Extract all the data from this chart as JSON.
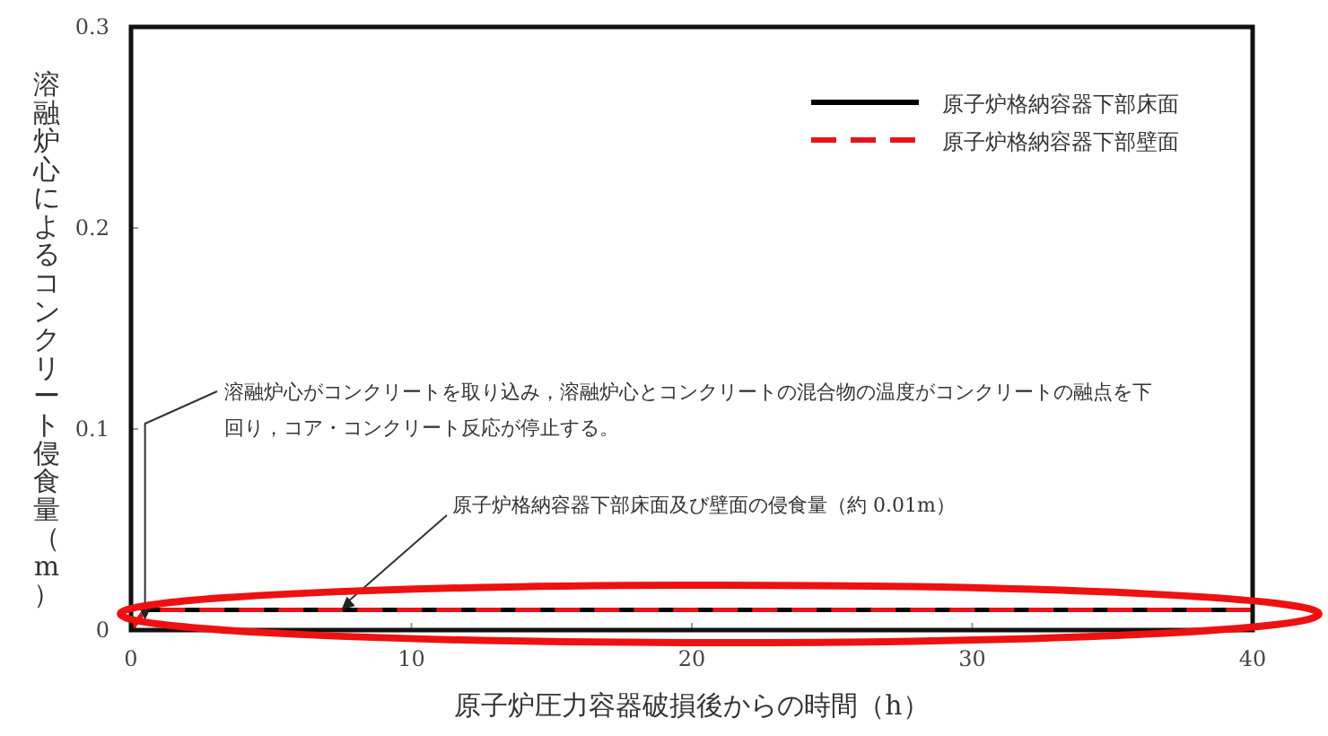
{
  "chart_data": {
    "type": "line",
    "xlabel": "原子炉圧力容器破損後からの時間（h）",
    "ylabel": "溶融炉心によるコンクリート侵食量（m）",
    "x": [
      0,
      0.5,
      40
    ],
    "series": [
      {
        "name": "原子炉格納容器下部床面",
        "color": "#000000",
        "values": [
          0,
          0.01,
          0.01
        ],
        "line_style": "solid"
      },
      {
        "name": "原子炉格納容器下部壁面",
        "color": "#e8141a",
        "values": [
          0,
          0.01,
          0.01
        ],
        "line_style": "dashed"
      }
    ],
    "xlim": [
      0,
      40
    ],
    "ylim": [
      0,
      0.3
    ],
    "xticks": [
      0,
      10,
      20,
      30,
      40
    ],
    "yticks": [
      0,
      0.1,
      0.2,
      0.3
    ],
    "legend": "top right",
    "grid": false,
    "marker": "none",
    "annotations": [
      {
        "text": "溶融炉心がコンクリートを取り込み，溶融炉心とコンクリートの混合物の温度がコンクリートの融点を下回り，コア・コンクリート反応が停止する。",
        "x": 0.5,
        "y": 0.005
      },
      {
        "text": "原子炉格納容器下部床面及び壁面の侵食量（約 0.01m）",
        "x": 7.5,
        "y": 0.01
      }
    ]
  }
}
